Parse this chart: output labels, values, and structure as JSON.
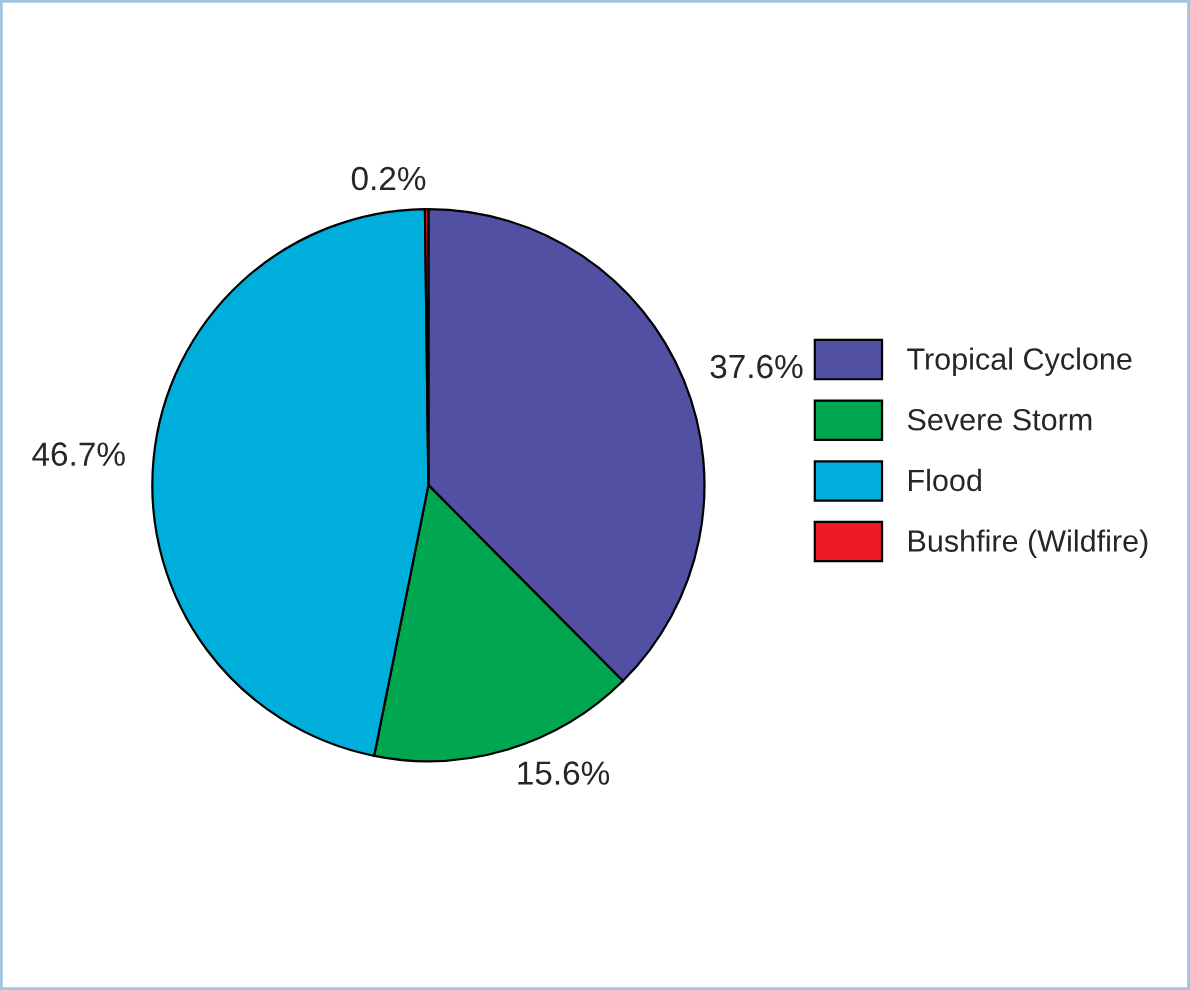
{
  "chart_data": {
    "type": "pie",
    "categories": [
      "Tropical Cyclone",
      "Severe Storm",
      "Flood",
      "Bushfire (Wildfire)"
    ],
    "values": [
      37.6,
      15.6,
      46.7,
      0.2
    ],
    "colors": [
      "#5150a2",
      "#00a650",
      "#00aedb",
      "#ed1c24"
    ],
    "value_labels": [
      "37.6%",
      "15.6%",
      "46.7%",
      "0.2%"
    ],
    "legend": "right"
  }
}
